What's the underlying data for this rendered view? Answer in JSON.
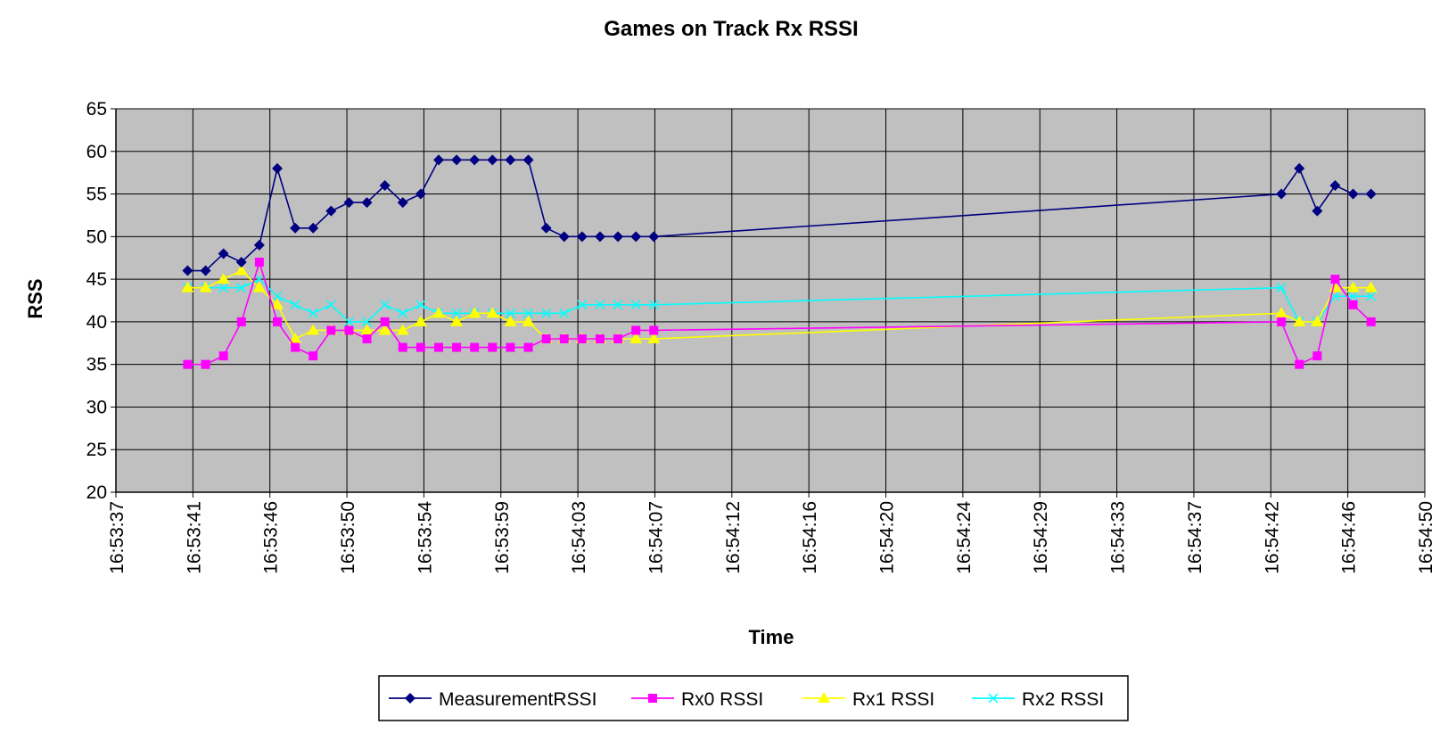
{
  "chart_data": {
    "type": "line",
    "title": "Games on Track Rx RSSI",
    "xlabel": "Time",
    "ylabel": "RSS",
    "ylim": [
      20,
      65
    ],
    "yticks": [
      20,
      25,
      30,
      35,
      40,
      45,
      50,
      55,
      60,
      65
    ],
    "xlim": [
      "16:53:37",
      "16:54:50"
    ],
    "xtick_labels": [
      "16:53:37",
      "16:53:41",
      "16:53:46",
      "16:53:50",
      "16:53:54",
      "16:53:59",
      "16:54:03",
      "16:54:07",
      "16:54:12",
      "16:54:16",
      "16:54:20",
      "16:54:24",
      "16:54:29",
      "16:54:33",
      "16:54:37",
      "16:54:42",
      "16:54:46",
      "16:54:50"
    ],
    "grid": true,
    "legend_position": "bottom",
    "background_color": "#c0c0c0",
    "x": [
      "16:53:41",
      "16:53:42",
      "16:53:43",
      "16:53:44",
      "16:53:45",
      "16:53:46",
      "16:53:47",
      "16:53:48",
      "16:53:49",
      "16:53:50",
      "16:53:51",
      "16:53:52",
      "16:53:53",
      "16:53:54",
      "16:53:55",
      "16:53:56",
      "16:53:57",
      "16:53:58",
      "16:53:59",
      "16:54:00",
      "16:54:01",
      "16:54:02",
      "16:54:03",
      "16:54:04",
      "16:54:05",
      "16:54:06",
      "16:54:07",
      "16:54:42",
      "16:54:43",
      "16:54:44",
      "16:54:45",
      "16:54:46",
      "16:54:47"
    ],
    "series": [
      {
        "name": "MeasurementRSSI",
        "color": "#000080",
        "marker": "diamond",
        "values": [
          46,
          46,
          48,
          47,
          49,
          58,
          51,
          51,
          53,
          54,
          54,
          56,
          54,
          55,
          59,
          59,
          59,
          59,
          59,
          59,
          51,
          50,
          50,
          50,
          50,
          50,
          50,
          55,
          58,
          53,
          56,
          55,
          55
        ]
      },
      {
        "name": "Rx0 RSSI",
        "color": "#ff00ff",
        "marker": "square",
        "values": [
          35,
          35,
          36,
          40,
          47,
          40,
          37,
          36,
          39,
          39,
          38,
          40,
          37,
          37,
          37,
          37,
          37,
          37,
          37,
          37,
          38,
          38,
          38,
          38,
          38,
          39,
          39,
          40,
          35,
          36,
          45,
          42,
          40
        ]
      },
      {
        "name": "Rx1 RSSI",
        "color": "#ffff00",
        "marker": "triangle",
        "values": [
          44,
          44,
          45,
          46,
          44,
          42,
          38,
          39,
          39,
          39,
          39,
          39,
          39,
          40,
          41,
          40,
          41,
          41,
          40,
          40,
          38,
          38,
          38,
          38,
          38,
          38,
          38,
          41,
          40,
          40,
          44,
          44,
          44
        ]
      },
      {
        "name": "Rx2 RSSI",
        "color": "#00ffff",
        "marker": "x",
        "values": [
          44,
          44,
          44,
          44,
          45,
          43,
          42,
          41,
          42,
          40,
          40,
          42,
          41,
          42,
          41,
          41,
          41,
          41,
          41,
          41,
          41,
          41,
          42,
          42,
          42,
          42,
          42,
          44,
          40,
          40,
          43,
          43,
          43
        ]
      }
    ]
  }
}
